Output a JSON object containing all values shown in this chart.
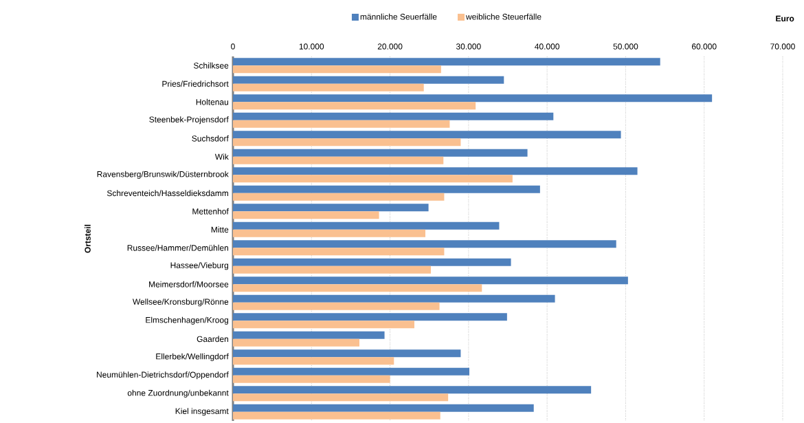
{
  "chart_data": {
    "type": "bar",
    "orientation": "horizontal",
    "xlabel": "Euro",
    "ylabel": "Ortsteil",
    "categories": [
      "Schilksee",
      "Pries/Friedrichsort",
      "Holtenau",
      "Steenbek-Projensdorf",
      "Suchsdorf",
      "Wik",
      "Ravensberg/Brunswik/Düsternbrook",
      "Schreventeich/Hasseldieksdamm",
      "Mettenhof",
      "Mitte",
      "Russee/Hammer/Demühlen",
      "Hassee/Vieburg",
      "Meimersdorf/Moorsee",
      "Wellsee/Kronsburg/Rönne",
      "Elmschenhagen/Kroog",
      "Gaarden",
      "Ellerbek/Wellingdorf",
      "Neumühlen-Dietrichsdorf/Oppendorf",
      "ohne Zuordnung/unbekannt",
      "Kiel insgesamt"
    ],
    "series": [
      {
        "name": "männliche Seuerfälle",
        "color": "#4f81bd",
        "values": [
          54400,
          34500,
          61000,
          40800,
          49400,
          37500,
          51500,
          39100,
          24900,
          33900,
          48800,
          35400,
          50300,
          41000,
          34900,
          19300,
          29000,
          30100,
          45600,
          38300
        ]
      },
      {
        "name": "weibliche Steuerfälle",
        "color": "#fac090",
        "values": [
          26500,
          24300,
          30900,
          27600,
          29000,
          26800,
          35600,
          26900,
          18600,
          24500,
          26900,
          25200,
          31700,
          26300,
          23100,
          16100,
          20500,
          20000,
          27400,
          26400
        ]
      }
    ],
    "xlim": [
      0,
      70000
    ],
    "xticks": [
      {
        "value": 0,
        "label": "0"
      },
      {
        "value": 10000,
        "label": "10.000"
      },
      {
        "value": 20000,
        "label": "20.000"
      },
      {
        "value": 30000,
        "label": "30.000"
      },
      {
        "value": 40000,
        "label": "40.000"
      },
      {
        "value": 50000,
        "label": "50.000"
      },
      {
        "value": 60000,
        "label": "60.000"
      },
      {
        "value": 70000,
        "label": "70.000"
      }
    ],
    "grid": "x",
    "legend": "top"
  }
}
